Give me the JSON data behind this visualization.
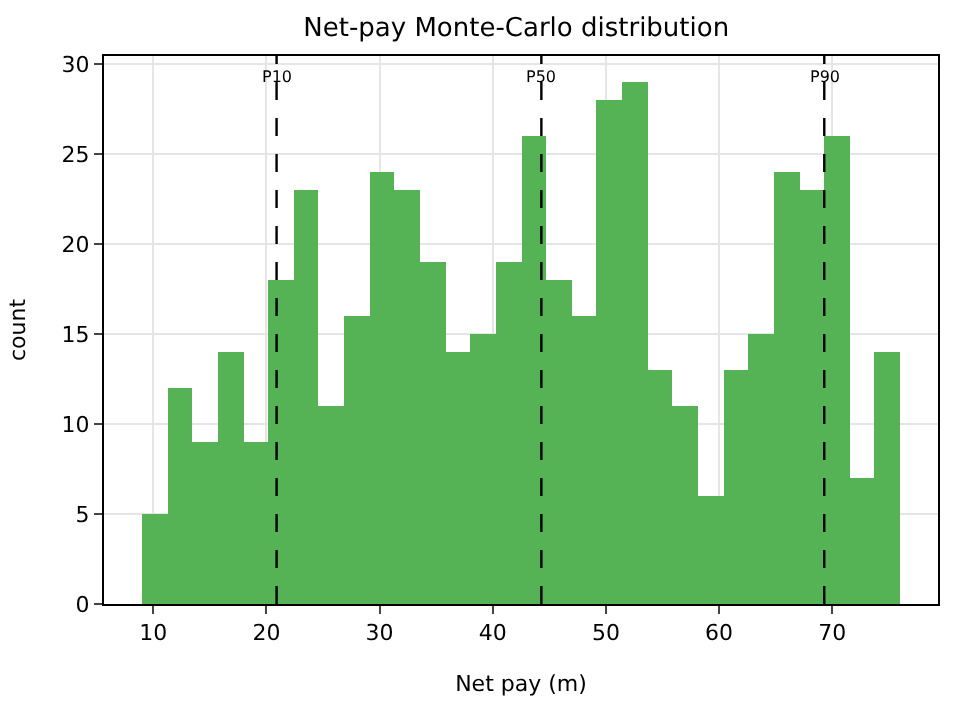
{
  "chart_data": {
    "type": "histogram",
    "title": "Net-pay Monte-Carlo distribution",
    "xlabel": "Net pay (m)",
    "ylabel": "count",
    "bins": [
      9.0,
      11.233,
      13.467,
      15.7,
      17.933,
      20.167,
      22.4,
      24.633,
      26.867,
      29.1,
      31.333,
      33.567,
      35.8,
      38.033,
      40.267,
      42.5,
      44.733,
      46.967,
      49.2,
      51.433,
      53.667,
      55.9,
      58.133,
      60.367,
      62.6,
      64.833,
      67.067,
      69.3,
      71.533,
      73.767,
      76.0
    ],
    "values": [
      5,
      12,
      9,
      14,
      9,
      18,
      23,
      11,
      16,
      24,
      23,
      19,
      14,
      15,
      19,
      26,
      18,
      16,
      28,
      29,
      13,
      11,
      6,
      13,
      15,
      24,
      23,
      26,
      7,
      14
    ],
    "color": "#55b255",
    "xlim": [
      5.65,
      79.35
    ],
    "xticks": [
      10,
      20,
      30,
      40,
      50,
      60,
      70
    ],
    "ylim": [
      0,
      30.45
    ],
    "yticks": [
      0,
      5,
      10,
      15,
      20,
      25,
      30
    ],
    "grid": true,
    "ref_lines": [
      {
        "axis": "x",
        "value": 20.9,
        "label": "P10",
        "color": "#000000",
        "line_style": "dashed"
      },
      {
        "axis": "x",
        "value": 44.3,
        "label": "P50",
        "color": "#000000",
        "line_style": "dashed"
      },
      {
        "axis": "x",
        "value": 69.3,
        "label": "P90",
        "color": "#000000",
        "line_style": "dashed"
      }
    ]
  }
}
